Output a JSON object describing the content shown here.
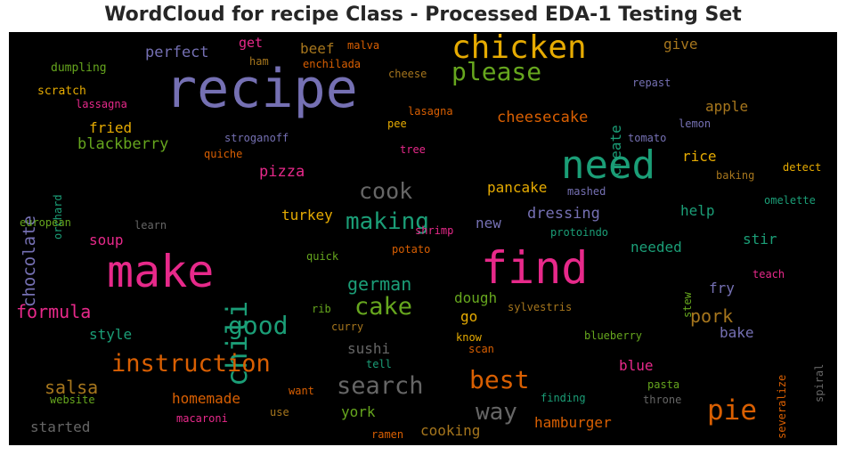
{
  "chart_data": {
    "type": "wordcloud",
    "title": "WordCloud for recipe Class - Processed EDA-1 Testing Set",
    "background": "#000000",
    "words": [
      {
        "text": "recipe",
        "color": "#7570b3"
      },
      {
        "text": "need",
        "color": "#1b9e77"
      },
      {
        "text": "make",
        "color": "#e7298a"
      },
      {
        "text": "find",
        "color": "#e7298a"
      },
      {
        "text": "chicken",
        "color": "#e6ab02"
      },
      {
        "text": "please",
        "color": "#66a61e"
      },
      {
        "text": "chili",
        "color": "#1b9e77"
      },
      {
        "text": "instruction",
        "color": "#d95f02"
      },
      {
        "text": "pie",
        "color": "#d95f02"
      },
      {
        "text": "cake",
        "color": "#66a61e"
      },
      {
        "text": "good",
        "color": "#1b9e77"
      },
      {
        "text": "search",
        "color": "#666666"
      },
      {
        "text": "best",
        "color": "#d95f02"
      },
      {
        "text": "cook",
        "color": "#666666"
      },
      {
        "text": "making",
        "color": "#1b9e77"
      },
      {
        "text": "way",
        "color": "#666666"
      },
      {
        "text": "chocolate",
        "color": "#7570b3"
      },
      {
        "text": "formula",
        "color": "#e7298a"
      },
      {
        "text": "german",
        "color": "#1b9e77"
      },
      {
        "text": "salsa",
        "color": "#a6761d"
      },
      {
        "text": "pork",
        "color": "#a6761d"
      },
      {
        "text": "cheesecake",
        "color": "#d95f02"
      },
      {
        "text": "perfect",
        "color": "#7570b3"
      },
      {
        "text": "beef",
        "color": "#a6761d"
      },
      {
        "text": "blackberry",
        "color": "#66a61e"
      },
      {
        "text": "fried",
        "color": "#e6ab02"
      },
      {
        "text": "apple",
        "color": "#a6761d"
      },
      {
        "text": "create",
        "color": "#1b9e77"
      },
      {
        "text": "pizza",
        "color": "#e7298a"
      },
      {
        "text": "turkey",
        "color": "#e6ab02"
      },
      {
        "text": "pancake",
        "color": "#e6ab02"
      },
      {
        "text": "dressing",
        "color": "#7570b3"
      },
      {
        "text": "rice",
        "color": "#e6ab02"
      },
      {
        "text": "soup",
        "color": "#e7298a"
      },
      {
        "text": "new",
        "color": "#7570b3"
      },
      {
        "text": "help",
        "color": "#1b9e77"
      },
      {
        "text": "stir",
        "color": "#1b9e77"
      },
      {
        "text": "needed",
        "color": "#1b9e77"
      },
      {
        "text": "dough",
        "color": "#66a61e"
      },
      {
        "text": "go",
        "color": "#e6ab02"
      },
      {
        "text": "style",
        "color": "#1b9e77"
      },
      {
        "text": "sushi",
        "color": "#666666"
      },
      {
        "text": "fry",
        "color": "#7570b3"
      },
      {
        "text": "bake",
        "color": "#7570b3"
      },
      {
        "text": "blue",
        "color": "#e7298a"
      },
      {
        "text": "homemade",
        "color": "#d95f02"
      },
      {
        "text": "york",
        "color": "#66a61e"
      },
      {
        "text": "cooking",
        "color": "#a6761d"
      },
      {
        "text": "hamburger",
        "color": "#d95f02"
      },
      {
        "text": "started",
        "color": "#666666"
      },
      {
        "text": "give",
        "color": "#a6761d"
      },
      {
        "text": "get",
        "color": "#e7298a"
      },
      {
        "text": "ham",
        "color": "#a6761d"
      },
      {
        "text": "malva",
        "color": "#d95f02"
      },
      {
        "text": "enchilada",
        "color": "#d95f02"
      },
      {
        "text": "cheese",
        "color": "#a6761d"
      },
      {
        "text": "dumpling",
        "color": "#66a61e"
      },
      {
        "text": "scratch",
        "color": "#e6ab02"
      },
      {
        "text": "lassagna",
        "color": "#e7298a"
      },
      {
        "text": "lasagna",
        "color": "#d95f02"
      },
      {
        "text": "repast",
        "color": "#7570b3"
      },
      {
        "text": "lemon",
        "color": "#7570b3"
      },
      {
        "text": "stroganoff",
        "color": "#7570b3"
      },
      {
        "text": "pee",
        "color": "#e6ab02"
      },
      {
        "text": "tree",
        "color": "#e7298a"
      },
      {
        "text": "tomato",
        "color": "#7570b3"
      },
      {
        "text": "quiche",
        "color": "#d95f02"
      },
      {
        "text": "detect",
        "color": "#e6ab02"
      },
      {
        "text": "baking",
        "color": "#a6761d"
      },
      {
        "text": "orchard",
        "color": "#1b9e77"
      },
      {
        "text": "european",
        "color": "#66a61e"
      },
      {
        "text": "learn",
        "color": "#666666"
      },
      {
        "text": "shrimp",
        "color": "#e7298a"
      },
      {
        "text": "mashed",
        "color": "#7570b3"
      },
      {
        "text": "omelette",
        "color": "#1b9e77"
      },
      {
        "text": "protoindo",
        "color": "#1b9e77"
      },
      {
        "text": "quick",
        "color": "#66a61e"
      },
      {
        "text": "potato",
        "color": "#d95f02"
      },
      {
        "text": "stew",
        "color": "#66a61e"
      },
      {
        "text": "teach",
        "color": "#e7298a"
      },
      {
        "text": "rib",
        "color": "#66a61e"
      },
      {
        "text": "sylvestris",
        "color": "#a6761d"
      },
      {
        "text": "curry",
        "color": "#a6761d"
      },
      {
        "text": "know",
        "color": "#e6ab02"
      },
      {
        "text": "scan",
        "color": "#d95f02"
      },
      {
        "text": "blueberry",
        "color": "#66a61e"
      },
      {
        "text": "severalize",
        "color": "#d95f02"
      },
      {
        "text": "spiral",
        "color": "#666666"
      },
      {
        "text": "tell",
        "color": "#1b9e77"
      },
      {
        "text": "finding",
        "color": "#1b9e77"
      },
      {
        "text": "pasta",
        "color": "#66a61e"
      },
      {
        "text": "throne",
        "color": "#666666"
      },
      {
        "text": "want",
        "color": "#d95f02"
      },
      {
        "text": "use",
        "color": "#a6761d"
      },
      {
        "text": "website",
        "color": "#66a61e"
      },
      {
        "text": "macaroni",
        "color": "#e7298a"
      },
      {
        "text": "ramen",
        "color": "#d95f02"
      }
    ]
  }
}
